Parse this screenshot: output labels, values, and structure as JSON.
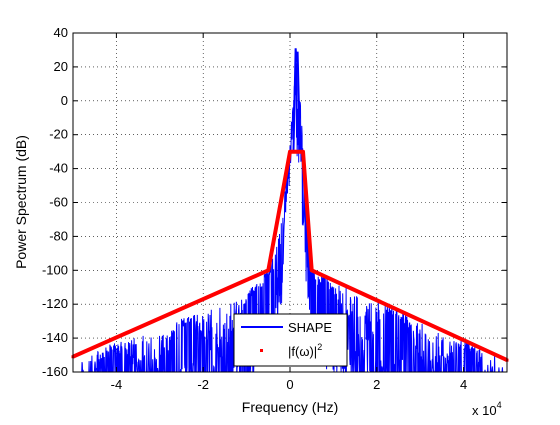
{
  "chart_data": {
    "type": "line",
    "title": "",
    "xlabel": "Frequency (Hz)",
    "ylabel": "Power Spectrum (dB)",
    "x_multiplier_label": "x 10",
    "x_multiplier_exponent": "4",
    "xlim": [
      -50000,
      50000
    ],
    "ylim": [
      -160,
      40
    ],
    "x_ticks": [
      -40000,
      -20000,
      0,
      20000,
      40000
    ],
    "x_tick_labels": [
      "-4",
      "-2",
      "0",
      "2",
      "4"
    ],
    "y_ticks": [
      -160,
      -140,
      -120,
      -100,
      -80,
      -60,
      -40,
      -20,
      0,
      20,
      40
    ],
    "y_tick_labels": [
      "-160",
      "-140",
      "-120",
      "-100",
      "-80",
      "-60",
      "-40",
      "-20",
      "0",
      "20",
      "40"
    ],
    "grid": true,
    "legend_position": "bottom-center",
    "series": [
      {
        "name": "SHAPE",
        "color": "#0000ff",
        "style": "noisy-spectrum",
        "peak": {
          "x": 1500,
          "y": 31
        },
        "envelope": [
          {
            "x": -50000,
            "y": -150
          },
          {
            "x": -40000,
            "y": -142
          },
          {
            "x": -30000,
            "y": -133
          },
          {
            "x": -20000,
            "y": -124
          },
          {
            "x": -10000,
            "y": -113
          },
          {
            "x": -5000,
            "y": -100
          },
          {
            "x": -2000,
            "y": -70
          },
          {
            "x": 0,
            "y": -20
          },
          {
            "x": 1500,
            "y": 31
          },
          {
            "x": 3000,
            "y": -20
          },
          {
            "x": 5000,
            "y": -100
          },
          {
            "x": 10000,
            "y": -106
          },
          {
            "x": 20000,
            "y": -117
          },
          {
            "x": 30000,
            "y": -128
          },
          {
            "x": 40000,
            "y": -140
          },
          {
            "x": 50000,
            "y": -151
          }
        ]
      },
      {
        "name": "|f(ω)|",
        "name_superscript": "2",
        "color": "#ff0000",
        "marker": "point",
        "x": [
          -50000,
          -5000,
          0,
          3000,
          5000,
          50000
        ],
        "y": [
          -151,
          -100,
          -30,
          -30,
          -100,
          -153
        ]
      }
    ]
  }
}
